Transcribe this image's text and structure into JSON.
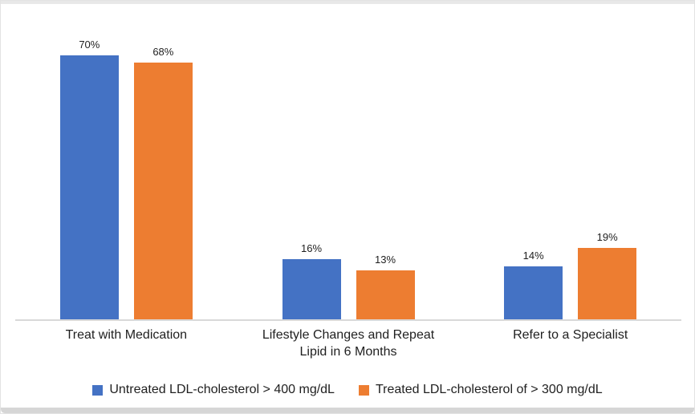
{
  "chart_data": {
    "type": "bar",
    "title": "",
    "xlabel": "",
    "ylabel": "",
    "grid": false,
    "legend_position": "bottom",
    "value_label_suffix": "%",
    "ylim": [
      0,
      76
    ],
    "categories": [
      "Treat with Medication",
      "Lifestyle Changes and Repeat Lipid in 6 Months",
      "Refer to a Specialist"
    ],
    "series": [
      {
        "name": "Untreated LDL-cholesterol > 400 mg/dL",
        "color": "#4472C4",
        "values": [
          70,
          16,
          14
        ]
      },
      {
        "name": "Treated LDL-cholesterol of > 300 mg/dL",
        "color": "#ED7D31",
        "values": [
          68,
          13,
          19
        ]
      }
    ],
    "data_labels": [
      [
        "70%",
        "16%",
        "14%"
      ],
      [
        "68%",
        "13%",
        "19%"
      ]
    ]
  },
  "colors": {
    "series_blue": "#4472C4",
    "series_orange": "#ED7D31",
    "axis_line": "#d9d9d9",
    "text": "#1f1f1f",
    "page_edge": "#d6d6d6"
  }
}
